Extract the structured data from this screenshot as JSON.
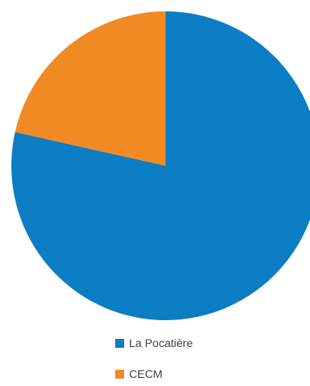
{
  "chart_data": {
    "type": "pie",
    "title": "",
    "start_angle": "12 o'clock, clockwise",
    "legend_position": "bottom",
    "series": [
      {
        "name": "La Pocatière",
        "value": 78.5,
        "color": "#0B7DC2"
      },
      {
        "name": "CECM",
        "value": 21.5,
        "color": "#F28A24"
      }
    ]
  }
}
